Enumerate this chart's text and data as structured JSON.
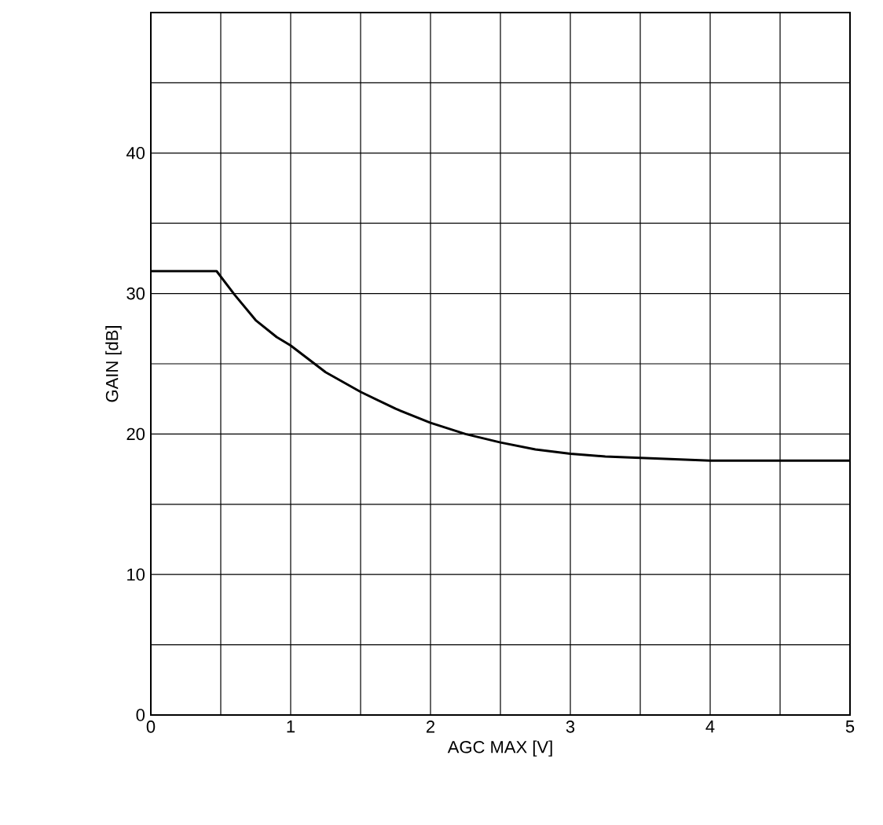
{
  "chart_data": {
    "type": "line",
    "xlabel": "AGC MAX [V]",
    "ylabel": "GAIN [dB]",
    "x": [
      0,
      0.47,
      0.6,
      0.75,
      0.9,
      1.0,
      1.25,
      1.5,
      1.75,
      2.0,
      2.25,
      2.5,
      2.75,
      3.0,
      3.25,
      3.5,
      3.75,
      4.0,
      4.5,
      5.0
    ],
    "series": [
      {
        "color": "#000000",
        "values": [
          31.6,
          31.6,
          29.9,
          28.1,
          26.9,
          26.3,
          24.4,
          23.0,
          21.8,
          20.8,
          20.0,
          19.4,
          18.9,
          18.6,
          18.4,
          18.3,
          18.2,
          18.1,
          18.1,
          18.1
        ]
      }
    ],
    "xlim": [
      0,
      5
    ],
    "ylim": [
      0,
      50
    ],
    "xticks": [
      0,
      {
        "value": 0.5,
        "label": null
      },
      1,
      {
        "value": 1.5,
        "label": null
      },
      2,
      {
        "value": 2.5,
        "label": null
      },
      3,
      {
        "value": 3.5,
        "label": null
      },
      4,
      {
        "value": 4.5,
        "label": null
      },
      5
    ],
    "yticks": [
      0,
      {
        "value": 5,
        "label": null
      },
      10,
      {
        "value": 15,
        "label": null
      },
      20,
      {
        "value": 25,
        "label": null
      },
      30,
      {
        "value": 35,
        "label": null
      },
      40,
      {
        "value": 45,
        "label": null
      },
      {
        "value": 50,
        "label": null
      }
    ],
    "grid": true,
    "marker": "none",
    "line_style": "solid"
  }
}
